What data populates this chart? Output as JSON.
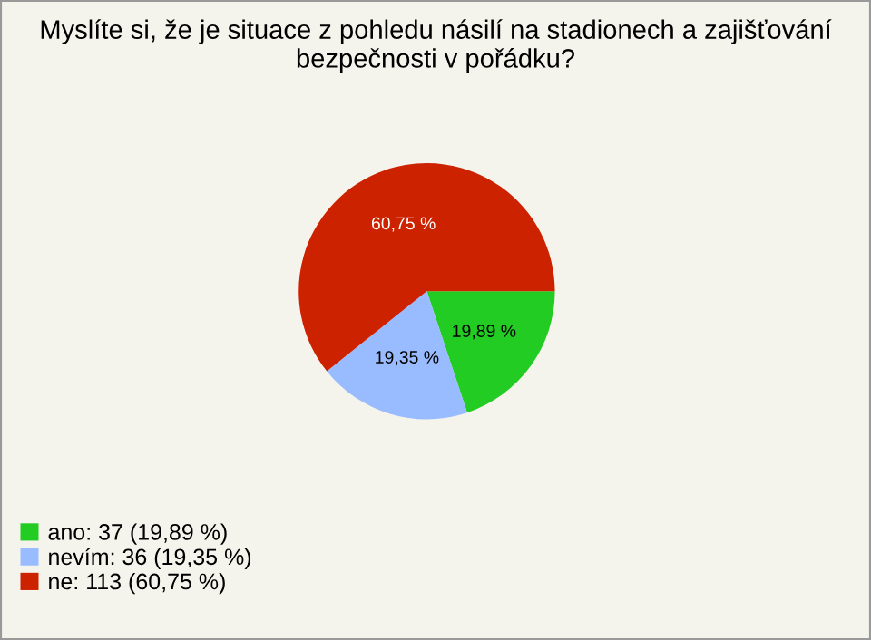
{
  "chart_data": {
    "type": "pie",
    "title": "Myslíte si, že je situace z pohledu násilí na stadionech a zajišťování bezpečnosti v pořádku?",
    "categories": [
      "ano: 37 (19,89 %)",
      "nevím: 36 (19,35 %)",
      "ne: 113 (60,75 %)"
    ],
    "values": [
      19.89,
      19.35,
      60.75
    ],
    "value_labels": [
      "19,89 %",
      "19,35 %",
      "60,75 %"
    ],
    "colors": [
      "#22cc22",
      "#99bbff",
      "#cc2200"
    ],
    "legend": "bottom left"
  }
}
